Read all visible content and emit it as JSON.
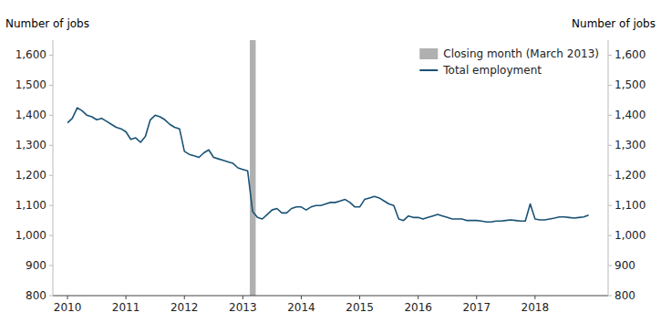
{
  "chart_data": {
    "type": "line",
    "ylabel": "Number of jobs",
    "y2label": "Number of jobs",
    "x": [
      2010.0,
      2010.083,
      2010.167,
      2010.25,
      2010.333,
      2010.417,
      2010.5,
      2010.583,
      2010.667,
      2010.75,
      2010.833,
      2010.917,
      2011.0,
      2011.083,
      2011.167,
      2011.25,
      2011.333,
      2011.417,
      2011.5,
      2011.583,
      2011.667,
      2011.75,
      2011.833,
      2011.917,
      2012.0,
      2012.083,
      2012.167,
      2012.25,
      2012.333,
      2012.417,
      2012.5,
      2012.583,
      2012.667,
      2012.75,
      2012.833,
      2012.917,
      2013.0,
      2013.083,
      2013.167,
      2013.25,
      2013.333,
      2013.417,
      2013.5,
      2013.583,
      2013.667,
      2013.75,
      2013.833,
      2013.917,
      2014.0,
      2014.083,
      2014.167,
      2014.25,
      2014.333,
      2014.417,
      2014.5,
      2014.583,
      2014.667,
      2014.75,
      2014.833,
      2014.917,
      2015.0,
      2015.083,
      2015.167,
      2015.25,
      2015.333,
      2015.417,
      2015.5,
      2015.583,
      2015.667,
      2015.75,
      2015.833,
      2015.917,
      2016.0,
      2016.083,
      2016.167,
      2016.25,
      2016.333,
      2016.417,
      2016.5,
      2016.583,
      2016.667,
      2016.75,
      2016.833,
      2016.917,
      2017.0,
      2017.083,
      2017.167,
      2017.25,
      2017.333,
      2017.417,
      2017.5,
      2017.583,
      2017.667,
      2017.75,
      2017.833,
      2017.917,
      2018.0,
      2018.083,
      2018.167,
      2018.25,
      2018.333,
      2018.417,
      2018.5,
      2018.583,
      2018.667,
      2018.75,
      2018.833,
      2018.917
    ],
    "series": [
      {
        "name": "Total employment",
        "color": "#1a5276",
        "values": [
          1375,
          1390,
          1425,
          1415,
          1400,
          1395,
          1385,
          1390,
          1380,
          1370,
          1360,
          1355,
          1345,
          1320,
          1325,
          1310,
          1330,
          1385,
          1400,
          1395,
          1385,
          1370,
          1360,
          1355,
          1280,
          1270,
          1265,
          1260,
          1275,
          1285,
          1260,
          1255,
          1250,
          1245,
          1240,
          1225,
          1220,
          1215,
          1080,
          1060,
          1055,
          1070,
          1085,
          1090,
          1075,
          1075,
          1090,
          1095,
          1095,
          1085,
          1095,
          1100,
          1100,
          1105,
          1110,
          1110,
          1115,
          1120,
          1110,
          1095,
          1095,
          1120,
          1125,
          1130,
          1125,
          1115,
          1105,
          1100,
          1055,
          1050,
          1065,
          1060,
          1060,
          1055,
          1060,
          1065,
          1070,
          1065,
          1060,
          1055,
          1055,
          1055,
          1050,
          1050,
          1050,
          1048,
          1045,
          1045,
          1048,
          1048,
          1050,
          1052,
          1050,
          1048,
          1048,
          1105,
          1055,
          1052,
          1052,
          1055,
          1058,
          1062,
          1062,
          1060,
          1058,
          1060,
          1062,
          1068
        ]
      }
    ],
    "spans": [
      {
        "name": "Closing month (March 2013)",
        "color": "#b0b0b0",
        "x0": 2013.12,
        "x1": 2013.22
      }
    ],
    "xlim": [
      2009.75,
      2019.25
    ],
    "xticks": [
      2010,
      2011,
      2012,
      2013,
      2014,
      2015,
      2016,
      2017,
      2018
    ],
    "ylim": [
      800,
      1650
    ],
    "yticks": [
      800,
      900,
      {
        "value": 1000,
        "label": "1,000"
      },
      {
        "value": 1100,
        "label": "1,100"
      },
      {
        "value": 1200,
        "label": "1,200"
      },
      {
        "value": 1300,
        "label": "1,300"
      },
      {
        "value": 1400,
        "label": "1,400"
      },
      {
        "value": 1500,
        "label": "1,500"
      },
      {
        "value": 1600,
        "label": "1,600"
      }
    ],
    "y2lim": [
      800,
      1650
    ],
    "y2ticks": [
      800,
      900,
      {
        "value": 1000,
        "label": "1,000"
      },
      {
        "value": 1100,
        "label": "1,100"
      },
      {
        "value": 1200,
        "label": "1,200"
      },
      {
        "value": 1300,
        "label": "1,300"
      },
      {
        "value": 1400,
        "label": "1,400"
      },
      {
        "value": 1500,
        "label": "1,500"
      },
      {
        "value": 1600,
        "label": "1,600"
      }
    ],
    "legend": "upper right",
    "grid": false
  }
}
